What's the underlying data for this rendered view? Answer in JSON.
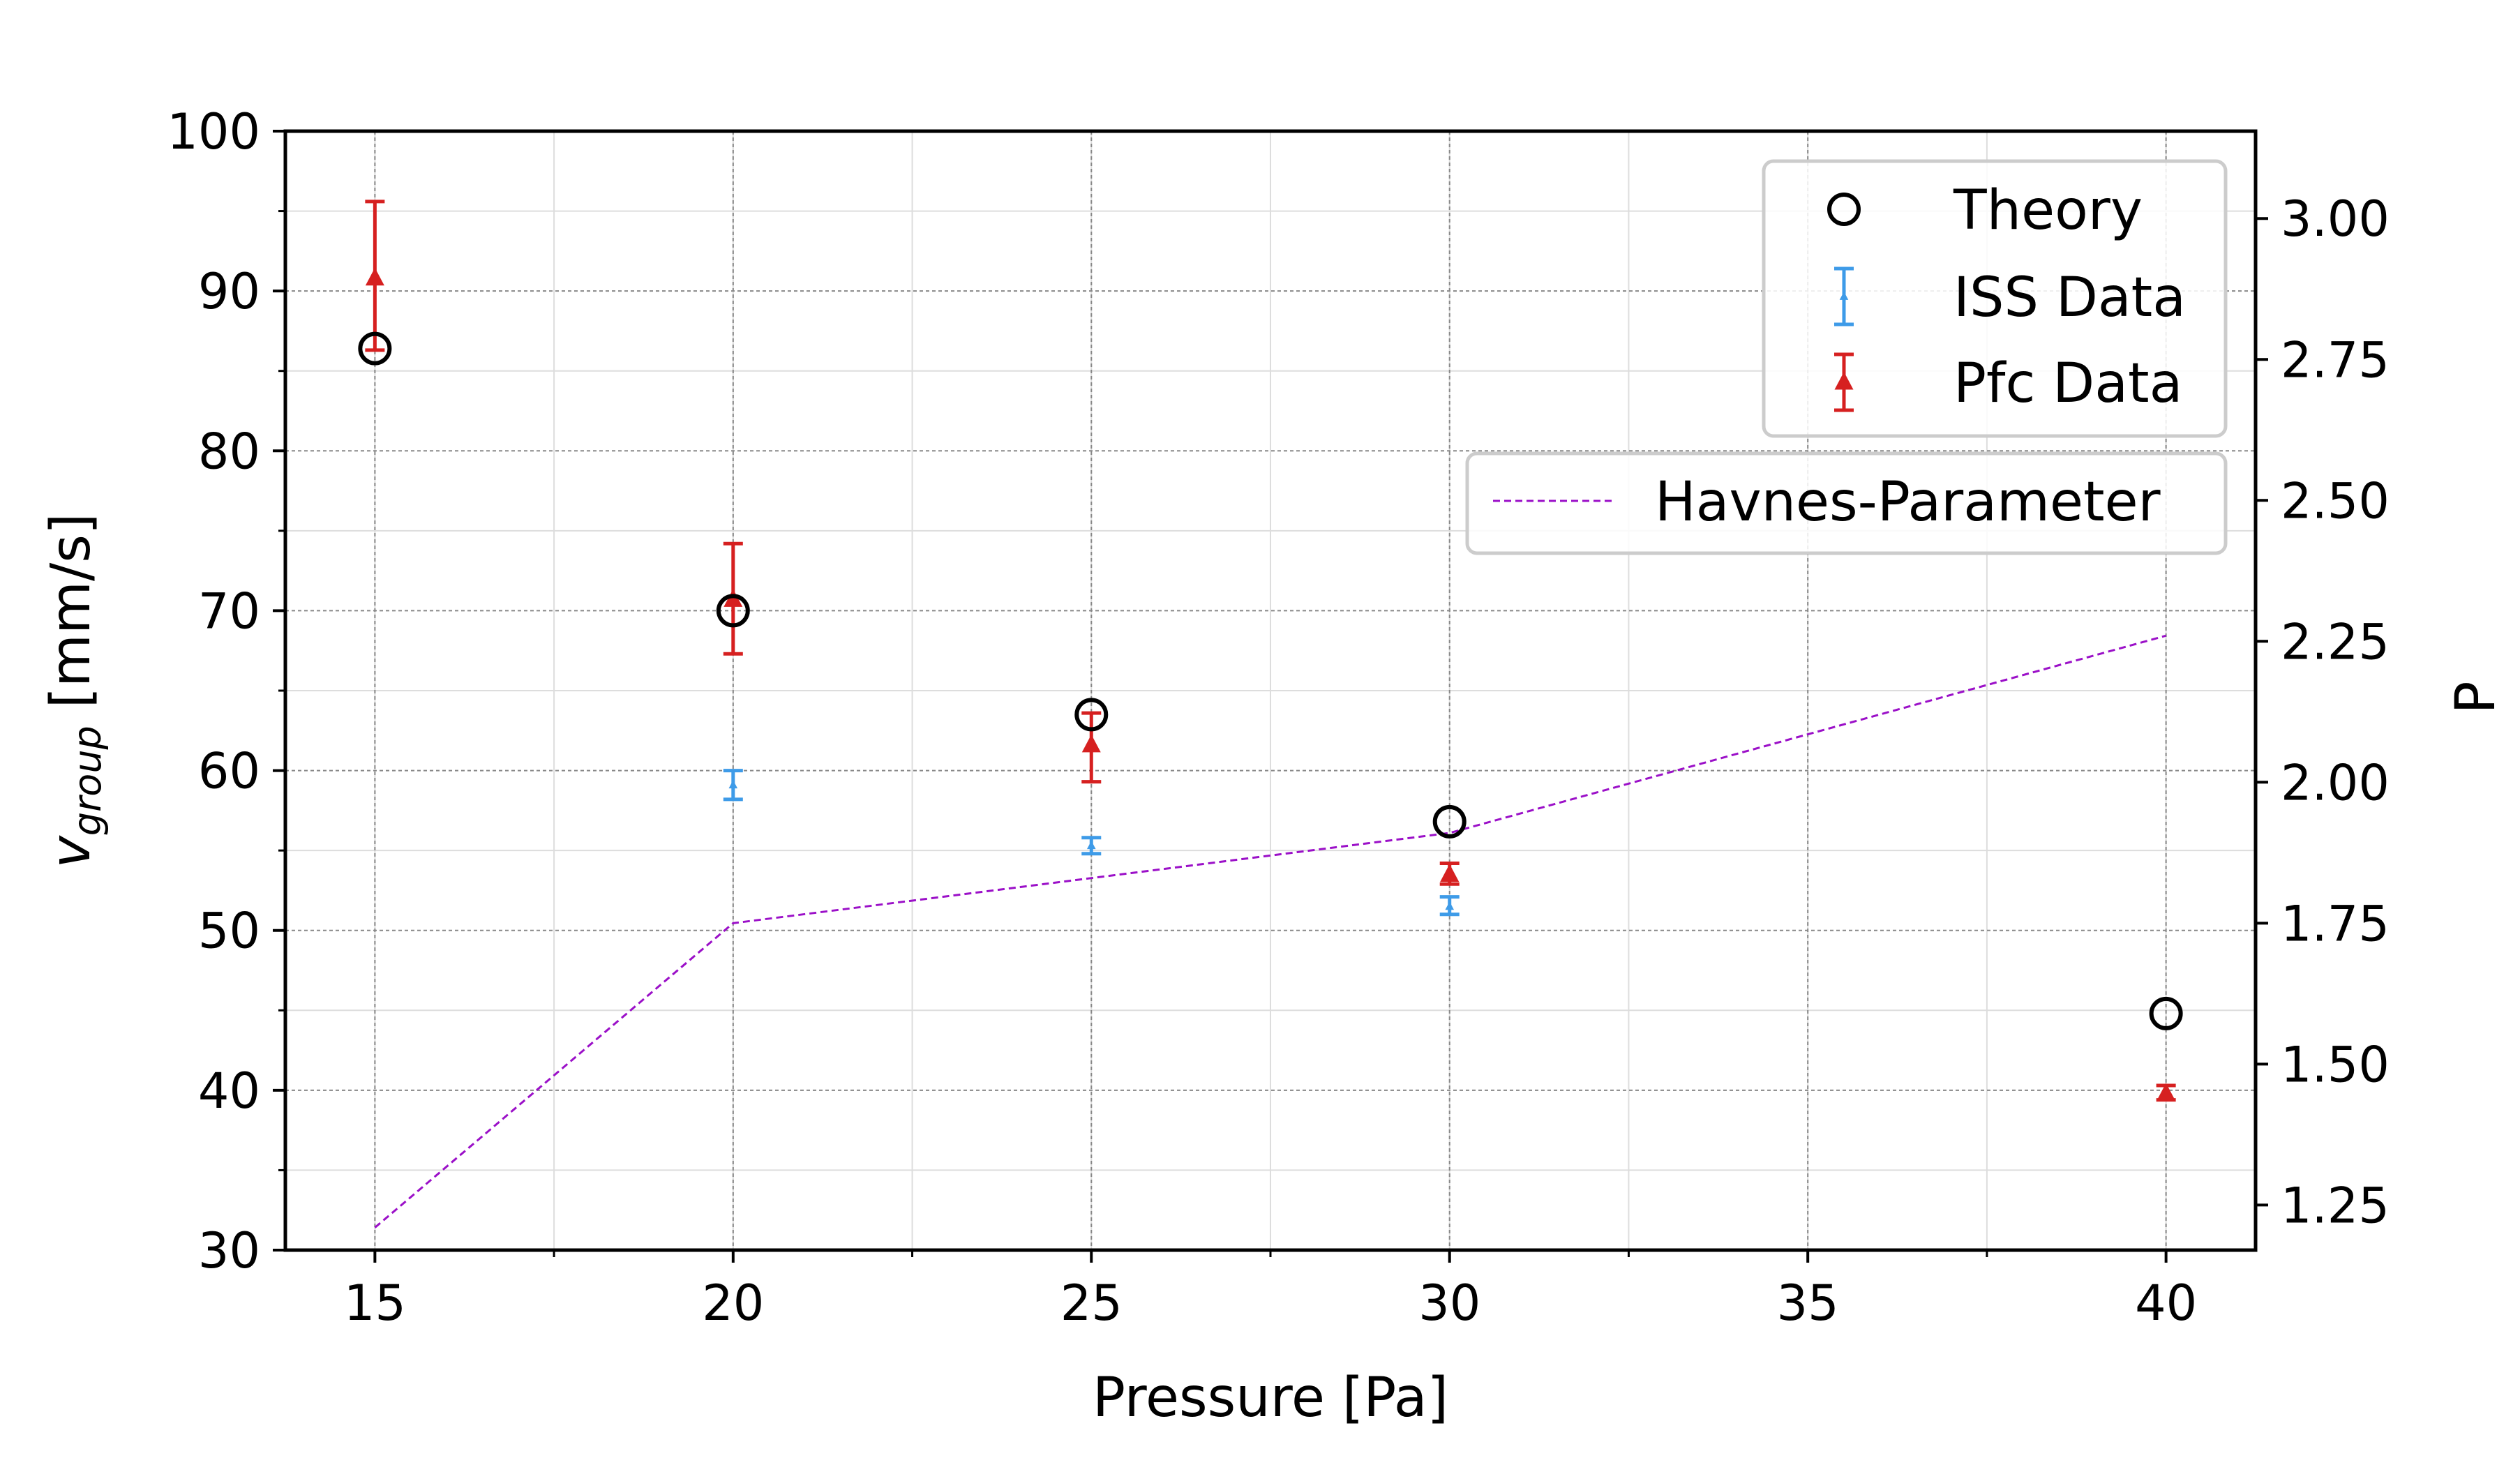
{
  "chart_data": {
    "type": "scatter",
    "xlabel": "Pressure [Pa]",
    "ylabel": {
      "main": "v",
      "sub": "group",
      "unit": " [mm/s]"
    },
    "y2label": "P",
    "x_ticks": [
      "15",
      "20",
      "25",
      "30",
      "35",
      "40"
    ],
    "x_tick_values": [
      15,
      20,
      25,
      30,
      35,
      40
    ],
    "y_ticks": [
      "30",
      "40",
      "50",
      "60",
      "70",
      "80",
      "90",
      "100"
    ],
    "y_tick_values": [
      30,
      40,
      50,
      60,
      70,
      80,
      90,
      100
    ],
    "y2_ticks": [
      "1.25",
      "1.50",
      "1.75",
      "2.00",
      "2.25",
      "2.50",
      "2.75",
      "3.00"
    ],
    "y2_tick_values": [
      1.25,
      1.5,
      1.75,
      2.0,
      2.25,
      2.5,
      2.75,
      3.0
    ],
    "xlim": [
      13.75,
      41.25
    ],
    "ylim": [
      30,
      100
    ],
    "y2lim": [
      1.17,
      3.155
    ],
    "grid": true,
    "legend_position": "top-right",
    "series": [
      {
        "name": "Theory",
        "marker": "open-circle",
        "color": "#000000",
        "axis": "left",
        "points": [
          {
            "x": 15,
            "y": 86.4
          },
          {
            "x": 20,
            "y": 70.0
          },
          {
            "x": 25,
            "y": 63.5
          },
          {
            "x": 30,
            "y": 56.8
          },
          {
            "x": 40,
            "y": 44.8
          }
        ]
      },
      {
        "name": "ISS Data",
        "marker": "dot-errorbar",
        "color": "#3e9be8",
        "axis": "left",
        "points": [
          {
            "x": 20,
            "y": 59.1,
            "err_low": 58.2,
            "err_high": 60.0
          },
          {
            "x": 25,
            "y": 55.3,
            "err_low": 54.8,
            "err_high": 55.8
          },
          {
            "x": 30,
            "y": 51.5,
            "err_low": 51.0,
            "err_high": 52.1
          }
        ]
      },
      {
        "name": "Pfc Data",
        "marker": "triangle-errorbar",
        "color": "#d62020",
        "axis": "left",
        "points": [
          {
            "x": 15,
            "y": 90.8,
            "err_low": 86.3,
            "err_high": 95.6
          },
          {
            "x": 20,
            "y": 70.7,
            "err_low": 67.3,
            "err_high": 74.2
          },
          {
            "x": 25,
            "y": 61.6,
            "err_low": 59.3,
            "err_high": 63.6
          },
          {
            "x": 30,
            "y": 53.5,
            "err_low": 52.9,
            "err_high": 54.2
          },
          {
            "x": 40,
            "y": 39.8,
            "err_low": 39.4,
            "err_high": 40.3
          }
        ]
      },
      {
        "name": "Havnes-Parameter",
        "marker": "dashed-line",
        "color": "#9b10c8",
        "axis": "right",
        "points": [
          {
            "x": 15,
            "y": 1.21
          },
          {
            "x": 20,
            "y": 1.75
          },
          {
            "x": 25,
            "y": 1.83
          },
          {
            "x": 30,
            "y": 1.91
          },
          {
            "x": 40,
            "y": 2.26
          }
        ]
      }
    ],
    "legend_primary": [
      "Theory",
      "ISS Data",
      "Pfc Data"
    ],
    "legend_secondary": [
      "Havnes-Parameter"
    ]
  }
}
